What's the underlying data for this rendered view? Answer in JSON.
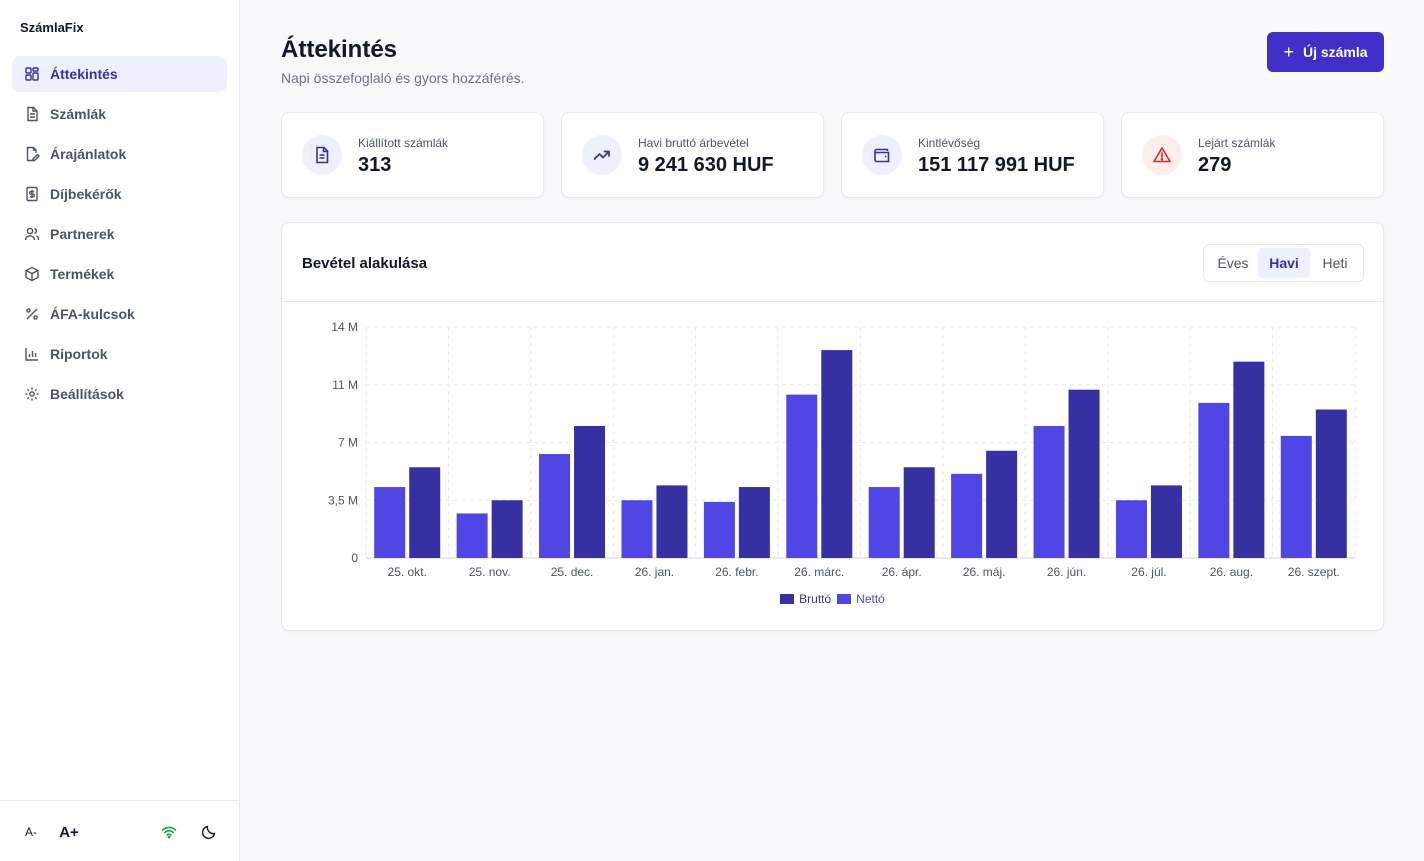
{
  "app": {
    "brand": "SzámlaFix"
  },
  "sidebar": {
    "items": [
      {
        "label": "Áttekintés",
        "icon": "dashboard-icon",
        "active": true
      },
      {
        "label": "Számlák",
        "icon": "document-icon"
      },
      {
        "label": "Árajánlatok",
        "icon": "edit-document-icon"
      },
      {
        "label": "Díjbekérők",
        "icon": "receipt-icon"
      },
      {
        "label": "Partnerek",
        "icon": "users-icon"
      },
      {
        "label": "Termékek",
        "icon": "box-icon"
      },
      {
        "label": "ÁFA-kulcsok",
        "icon": "percent-icon"
      },
      {
        "label": "Riportok",
        "icon": "bar-chart-icon"
      },
      {
        "label": "Beállítások",
        "icon": "gear-icon"
      }
    ],
    "footer": {
      "font_decrease": "A-",
      "font_increase": "A+",
      "wifi_icon": "wifi-icon",
      "theme_icon": "moon-icon"
    }
  },
  "header": {
    "title": "Áttekintés",
    "subtitle": "Napi összefoglaló és gyors hozzáférés.",
    "new_button": "Új számla"
  },
  "stats": [
    {
      "label": "Kiállított számlák",
      "value": "313",
      "icon": "document-icon"
    },
    {
      "label": "Havi bruttó árbevétel",
      "value": "9 241 630 HUF",
      "icon": "trending-up-icon"
    },
    {
      "label": "Kintlévőség",
      "value": "151 117 991 HUF",
      "icon": "wallet-icon"
    },
    {
      "label": "Lejárt számlák",
      "value": "279",
      "icon": "warning-icon"
    }
  ],
  "chart_panel": {
    "title": "Bevétel alakulása",
    "tabs": [
      {
        "label": "Éves",
        "active": false
      },
      {
        "label": "Havi",
        "active": true
      },
      {
        "label": "Heti",
        "active": false
      }
    ]
  },
  "colors": {
    "accent": "#3f2fc8",
    "brutto": "#3730a3",
    "netto": "#4f46e5",
    "danger": "#dc2626"
  },
  "chart_data": {
    "type": "bar",
    "categories": [
      "25. okt.",
      "25. nov.",
      "25. dec.",
      "26. jan.",
      "26. febr.",
      "26. márc.",
      "26. ápr.",
      "26. máj.",
      "26. jún.",
      "26. júl.",
      "26. aug.",
      "26. szept."
    ],
    "series": [
      {
        "name": "Nettó",
        "values": [
          4.3,
          2.7,
          6.3,
          3.5,
          3.4,
          9.9,
          4.3,
          5.1,
          8.0,
          3.5,
          9.4,
          7.4
        ]
      },
      {
        "name": "Bruttó",
        "values": [
          5.5,
          3.5,
          8.0,
          4.4,
          4.3,
          12.6,
          5.5,
          6.5,
          10.2,
          4.4,
          11.9,
          9.0
        ]
      }
    ],
    "y_ticks": [
      {
        "value": 0,
        "label": "0"
      },
      {
        "value": 3.5,
        "label": "3,5 M"
      },
      {
        "value": 7,
        "label": "7 M"
      },
      {
        "value": 10.5,
        "label": "11 M"
      },
      {
        "value": 14,
        "label": "14 M"
      }
    ],
    "ylim": [
      0,
      14
    ],
    "unit": "M HUF",
    "grid": true,
    "legend": {
      "position": "bottom",
      "items": [
        "Bruttó",
        "Nettó"
      ]
    }
  }
}
